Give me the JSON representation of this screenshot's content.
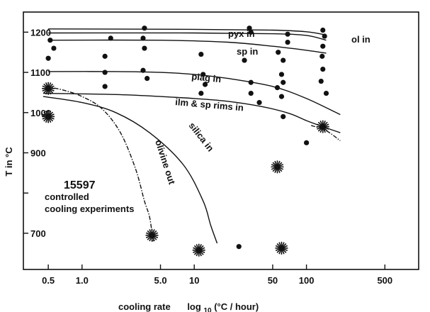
{
  "chart_data": {
    "type": "scatter",
    "title": "",
    "xlabel_prefix": "cooling rate",
    "xlabel_unit": "(°C / hour)",
    "xlabel_log": "log",
    "xlabel_log_sub": "10",
    "ylabel": "T  in  °C",
    "x_scale": "log",
    "xlim": [
      0.3,
      1000
    ],
    "ylim": [
      610,
      1250
    ],
    "x_ticks": [
      {
        "value": 0.5,
        "label": "0.5"
      },
      {
        "value": 1,
        "label": "1.0"
      },
      {
        "value": 5,
        "label": "5.0"
      },
      {
        "value": 10,
        "label": "10"
      },
      {
        "value": 50,
        "label": "50"
      },
      {
        "value": 100,
        "label": "100"
      },
      {
        "value": 500,
        "label": "500"
      }
    ],
    "y_ticks": [
      {
        "value": 1200,
        "label": "1200"
      },
      {
        "value": 1100,
        "label": "1100"
      },
      {
        "value": 1000,
        "label": "1000"
      },
      {
        "value": 900,
        "label": "900"
      },
      {
        "value": 700,
        "label": "700"
      }
    ],
    "y_minor_ticks": [
      800
    ],
    "grid": false,
    "annotation_id": "15597",
    "annotation_lines": [
      "controlled",
      "cooling experiments"
    ],
    "series": [
      {
        "marker": "dot",
        "points": [
          [
            0.52,
            1180
          ],
          [
            0.56,
            1160
          ],
          [
            0.5,
            1135
          ],
          [
            1.6,
            1140
          ],
          [
            1.6,
            1100
          ],
          [
            1.6,
            1065
          ],
          [
            1.8,
            1185
          ],
          [
            3.6,
            1210
          ],
          [
            3.5,
            1185
          ],
          [
            3.6,
            1160
          ],
          [
            3.5,
            1105
          ],
          [
            3.8,
            1085
          ],
          [
            11.5,
            1145
          ],
          [
            12,
            1095
          ],
          [
            12.5,
            1070
          ],
          [
            11.5,
            1048
          ],
          [
            31,
            1210
          ],
          [
            32,
            1200
          ],
          [
            28,
            1130
          ],
          [
            32,
            1075
          ],
          [
            32,
            1048
          ],
          [
            38,
            1025
          ],
          [
            56,
            1150
          ],
          [
            62,
            1130
          ],
          [
            60,
            1095
          ],
          [
            62,
            1075
          ],
          [
            60,
            1040
          ],
          [
            62,
            990
          ],
          [
            68,
            1195
          ],
          [
            68,
            1175
          ],
          [
            55,
            1062
          ],
          [
            140,
            1205
          ],
          [
            145,
            1190
          ],
          [
            140,
            1165
          ],
          [
            138,
            1140
          ],
          [
            140,
            1108
          ],
          [
            135,
            1078
          ],
          [
            150,
            1048
          ],
          [
            100,
            925
          ],
          [
            25,
            667
          ]
        ]
      },
      {
        "marker": "star",
        "points": [
          [
            0.5,
            1060
          ],
          [
            0.5,
            990
          ],
          [
            4.2,
            695
          ],
          [
            11,
            658
          ],
          [
            55,
            865
          ],
          [
            60,
            663
          ],
          [
            140,
            965
          ]
        ]
      }
    ],
    "curves": [
      {
        "label": "ol in",
        "style": "solid",
        "points": [
          [
            0.5,
            1208
          ],
          [
            10,
            1207
          ],
          [
            50,
            1205
          ],
          [
            100,
            1201
          ],
          [
            150,
            1193
          ]
        ]
      },
      {
        "label": "pyx in",
        "style": "solid",
        "points": [
          [
            0.5,
            1198
          ],
          [
            10,
            1198
          ],
          [
            50,
            1196
          ],
          [
            100,
            1192
          ],
          [
            150,
            1180
          ]
        ]
      },
      {
        "label": "sp in",
        "style": "solid",
        "points": [
          [
            0.5,
            1180
          ],
          [
            5,
            1180
          ],
          [
            20,
            1175
          ],
          [
            50,
            1165
          ],
          [
            100,
            1155
          ],
          [
            150,
            1148
          ]
        ]
      },
      {
        "label": "plag in",
        "style": "solid",
        "points": [
          [
            0.5,
            1102
          ],
          [
            2,
            1102
          ],
          [
            5,
            1100
          ],
          [
            10,
            1095
          ],
          [
            20,
            1085
          ],
          [
            50,
            1065
          ],
          [
            100,
            1035
          ],
          [
            200,
            995
          ]
        ]
      },
      {
        "label": "ilm & sp rims in",
        "style": "solid",
        "points": [
          [
            0.45,
            1048
          ],
          [
            2,
            1045
          ],
          [
            5,
            1040
          ],
          [
            10,
            1035
          ],
          [
            20,
            1028
          ],
          [
            40,
            1015
          ],
          [
            70,
            998
          ],
          [
            100,
            980
          ],
          [
            140,
            965
          ],
          [
            200,
            950
          ]
        ]
      },
      {
        "label": "",
        "style": "dashdot",
        "points": [
          [
            110,
            968
          ],
          [
            150,
            955
          ],
          [
            200,
            930
          ]
        ]
      },
      {
        "label": "silica in",
        "style": "solid",
        "points": [
          [
            0.45,
            1040
          ],
          [
            1,
            1025
          ],
          [
            2,
            1000
          ],
          [
            4,
            950
          ],
          [
            8,
            870
          ],
          [
            12,
            780
          ],
          [
            14,
            720
          ],
          [
            16,
            675
          ]
        ]
      },
      {
        "label": "olivine out",
        "style": "dashdot",
        "points": [
          [
            0.48,
            1065
          ],
          [
            0.7,
            1055
          ],
          [
            1,
            1040
          ],
          [
            1.5,
            1010
          ],
          [
            2.2,
            950
          ],
          [
            3,
            860
          ],
          [
            3.6,
            780
          ],
          [
            4,
            740
          ],
          [
            4.3,
            680
          ]
        ]
      }
    ]
  }
}
